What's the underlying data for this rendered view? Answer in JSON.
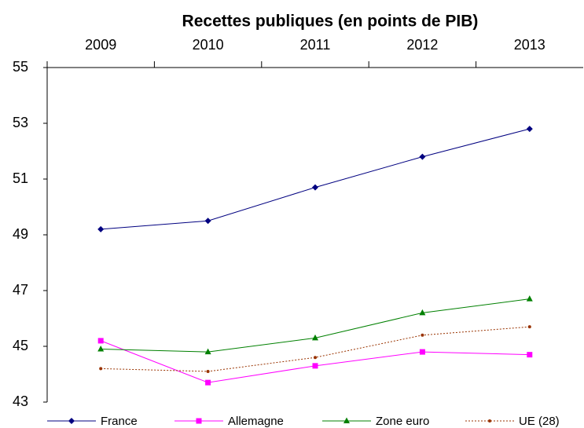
{
  "chart_data": {
    "type": "line",
    "title": "Recettes publiques (en points de PIB)",
    "categories": [
      "2009",
      "2010",
      "2011",
      "2012",
      "2013"
    ],
    "series": [
      {
        "name": "France",
        "color": "#000080",
        "marker": "diamond",
        "dash": "solid",
        "values": [
          49.2,
          49.5,
          50.7,
          51.8,
          52.8
        ]
      },
      {
        "name": "Allemagne",
        "color": "#ff00ff",
        "marker": "square",
        "dash": "solid",
        "values": [
          45.2,
          43.7,
          44.3,
          44.8,
          44.7
        ]
      },
      {
        "name": "Zone euro",
        "color": "#008000",
        "marker": "triangle",
        "dash": "solid",
        "values": [
          44.9,
          44.8,
          45.3,
          46.2,
          46.7
        ]
      },
      {
        "name": "UE (28)",
        "color": "#993300",
        "marker": "dot",
        "dash": "dotted",
        "values": [
          44.2,
          44.1,
          44.6,
          45.4,
          45.7
        ]
      }
    ],
    "ylim": [
      43,
      55
    ],
    "yticks": [
      43,
      45,
      47,
      49,
      51,
      53,
      55
    ],
    "grid": false,
    "legend": "bottom"
  }
}
